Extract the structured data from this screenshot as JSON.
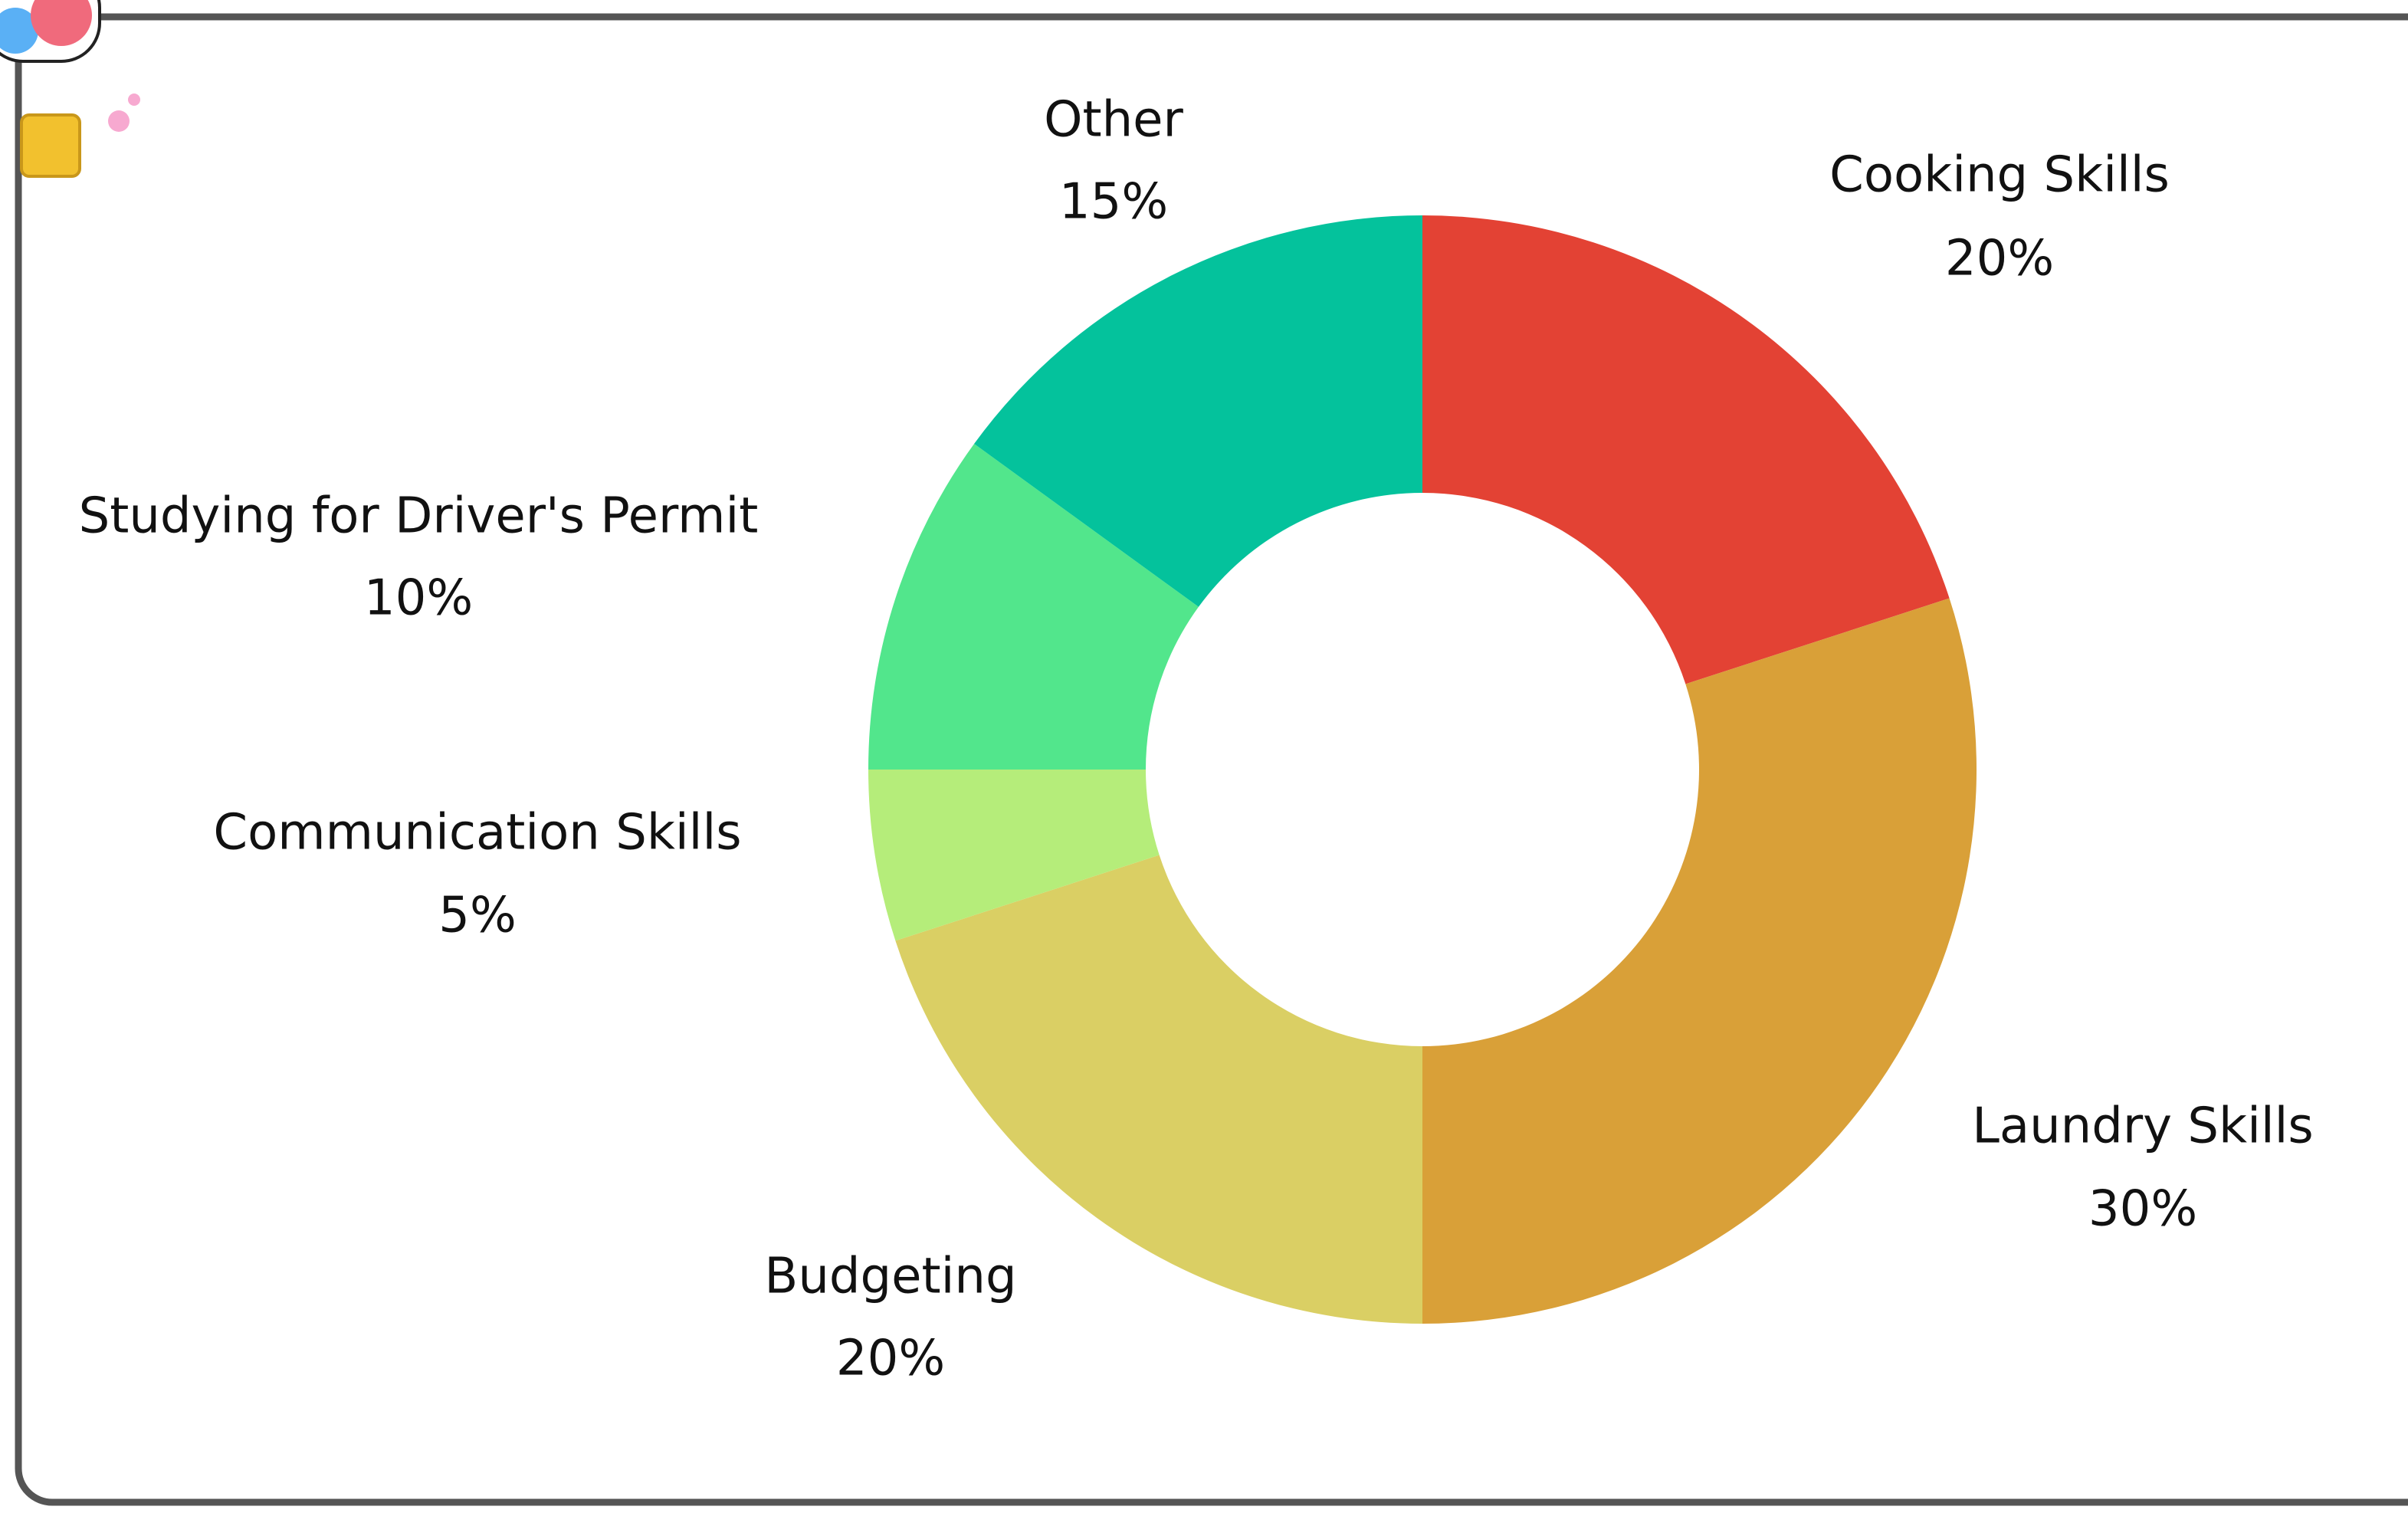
{
  "chart_data": {
    "type": "donut",
    "categories": [
      "Cooking Skills",
      "Laundry Skills",
      "Budgeting",
      "Communication Skills",
      "Studying for Driver's Permit",
      "Other"
    ],
    "values": [
      20,
      30,
      20,
      5,
      10,
      15
    ],
    "value_labels": [
      "20%",
      "30%",
      "20%",
      "5%",
      "10%",
      "15%"
    ],
    "colors": [
      "#e34234",
      "#d9a038",
      "#dacf64",
      "#b5ed7a",
      "#52e68c",
      "#04c29c"
    ]
  }
}
